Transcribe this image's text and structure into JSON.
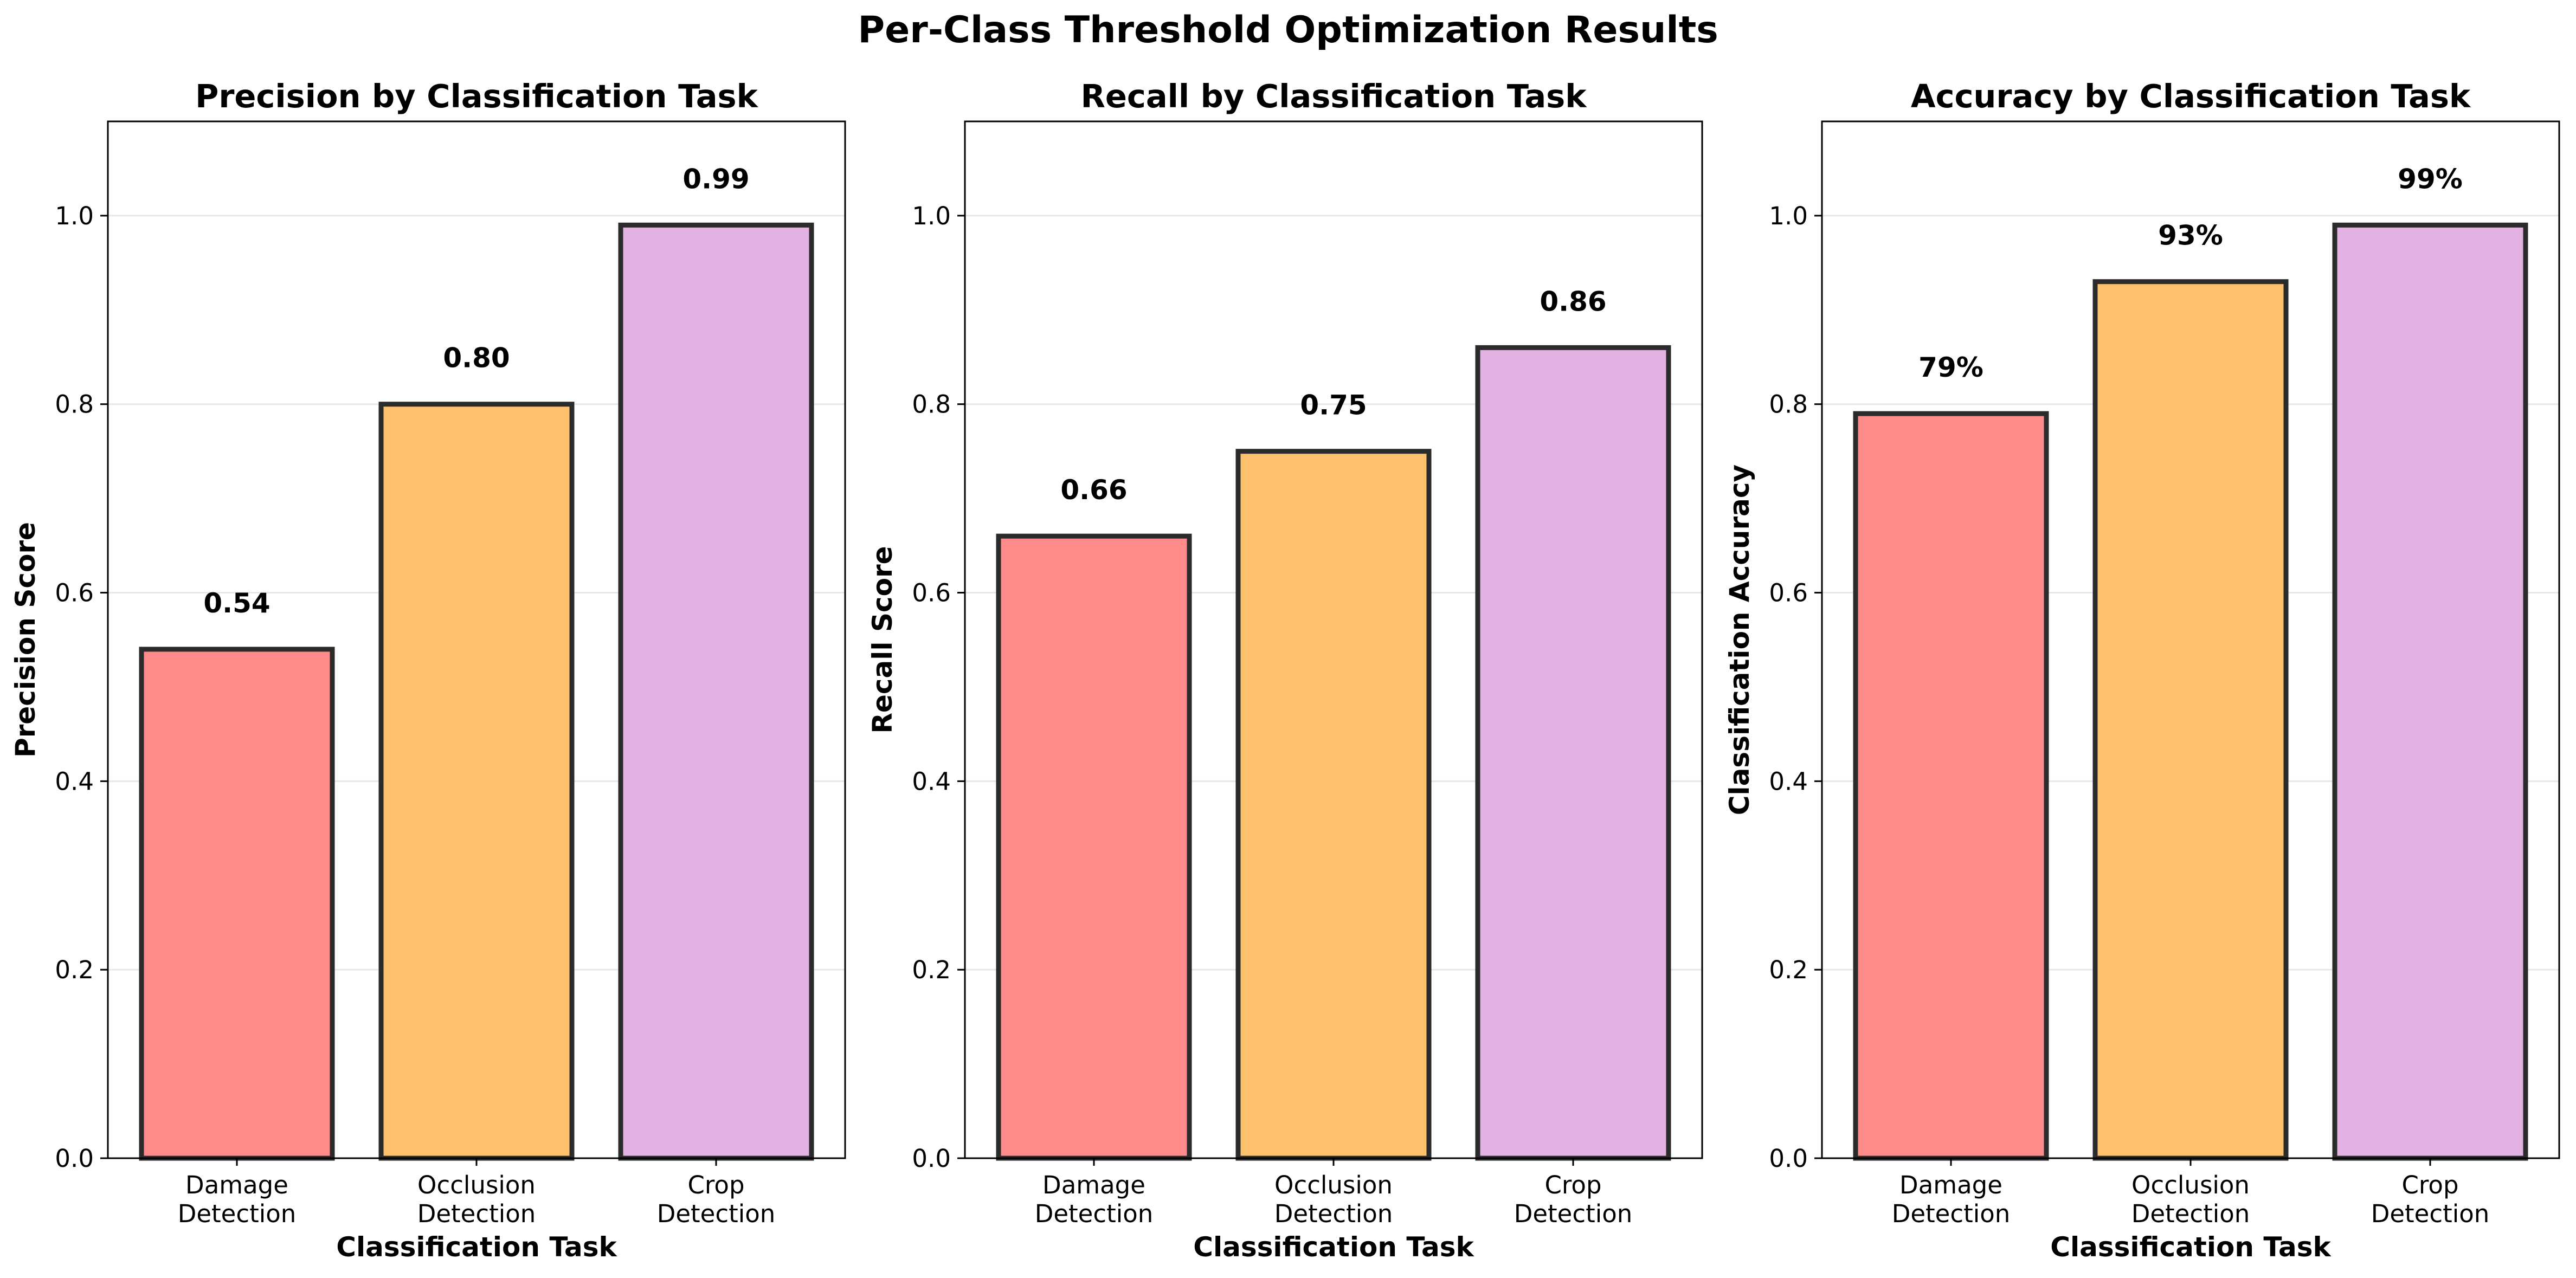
{
  "suptitle": "Per-Class Threshold Optimization Results",
  "chart_data": [
    {
      "type": "bar",
      "title": "Precision by Classification Task",
      "xlabel": "Classification Task",
      "ylabel": "Precision Score",
      "categories": [
        [
          "Damage",
          "Detection"
        ],
        [
          "Occlusion",
          "Detection"
        ],
        [
          "Crop",
          "Detection"
        ]
      ],
      "values": [
        0.54,
        0.8,
        0.99
      ],
      "value_labels": [
        "0.54",
        "0.80",
        "0.99"
      ],
      "ylim": [
        0,
        1.1
      ],
      "yticks": [
        0.0,
        0.2,
        0.4,
        0.6,
        0.8,
        1.0
      ],
      "ytick_labels": [
        "0.0",
        "0.2",
        "0.4",
        "0.6",
        "0.8",
        "1.0"
      ],
      "grid": "y",
      "bar_colors": [
        "#ff8a8a",
        "#fdc16e",
        "#e1b2e2"
      ],
      "edge_color": "#2b2b2b"
    },
    {
      "type": "bar",
      "title": "Recall by Classification Task",
      "xlabel": "Classification Task",
      "ylabel": "Recall Score",
      "categories": [
        [
          "Damage",
          "Detection"
        ],
        [
          "Occlusion",
          "Detection"
        ],
        [
          "Crop",
          "Detection"
        ]
      ],
      "values": [
        0.66,
        0.75,
        0.86
      ],
      "value_labels": [
        "0.66",
        "0.75",
        "0.86"
      ],
      "ylim": [
        0,
        1.1
      ],
      "yticks": [
        0.0,
        0.2,
        0.4,
        0.6,
        0.8,
        1.0
      ],
      "ytick_labels": [
        "0.0",
        "0.2",
        "0.4",
        "0.6",
        "0.8",
        "1.0"
      ],
      "grid": "y",
      "bar_colors": [
        "#ff8a8a",
        "#fdc16e",
        "#e1b2e2"
      ],
      "edge_color": "#2b2b2b"
    },
    {
      "type": "bar",
      "title": "Accuracy by Classification Task",
      "xlabel": "Classification Task",
      "ylabel": "Classification Accuracy",
      "categories": [
        [
          "Damage",
          "Detection"
        ],
        [
          "Occlusion",
          "Detection"
        ],
        [
          "Crop",
          "Detection"
        ]
      ],
      "values": [
        0.79,
        0.93,
        0.99
      ],
      "value_labels": [
        "79%",
        "93%",
        "99%"
      ],
      "ylim": [
        0,
        1.1
      ],
      "yticks": [
        0.0,
        0.2,
        0.4,
        0.6,
        0.8,
        1.0
      ],
      "ytick_labels": [
        "0.0",
        "0.2",
        "0.4",
        "0.6",
        "0.8",
        "1.0"
      ],
      "grid": "y",
      "bar_colors": [
        "#ff8a8a",
        "#fdc16e",
        "#e1b2e2"
      ],
      "edge_color": "#2b2b2b"
    }
  ]
}
